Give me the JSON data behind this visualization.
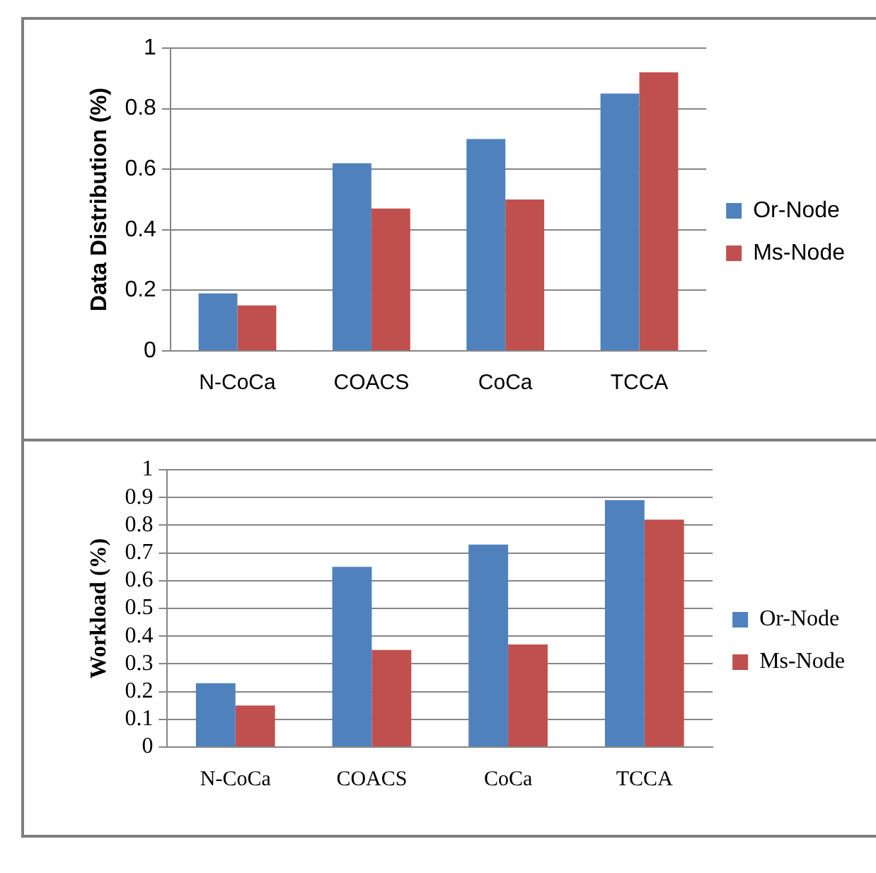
{
  "chart_data": [
    {
      "type": "bar",
      "ylabel": "Data Distribution (%)",
      "categories": [
        "N-CoCa",
        "COACS",
        "CoCa",
        "TCCA"
      ],
      "series": [
        {
          "name": "Or-Node",
          "color": "#4f81bd",
          "values": [
            0.19,
            0.62,
            0.7,
            0.85
          ]
        },
        {
          "name": "Ms-Node",
          "color": "#c0504d",
          "values": [
            0.15,
            0.47,
            0.5,
            0.92
          ]
        }
      ],
      "ylim": [
        0,
        1
      ],
      "yticks": [
        0,
        0.2,
        0.4,
        0.6,
        0.8,
        1
      ],
      "grid": "y",
      "legend": "right"
    },
    {
      "type": "bar",
      "ylabel": "Workload (%)",
      "categories": [
        "N-CoCa",
        "COACS",
        "CoCa",
        "TCCA"
      ],
      "series": [
        {
          "name": "Or-Node",
          "color": "#4f81bd",
          "values": [
            0.23,
            0.65,
            0.73,
            0.89
          ]
        },
        {
          "name": "Ms-Node",
          "color": "#c0504d",
          "values": [
            0.15,
            0.35,
            0.37,
            0.82
          ]
        }
      ],
      "ylim": [
        0,
        1
      ],
      "yticks": [
        0,
        0.1,
        0.2,
        0.3,
        0.4,
        0.5,
        0.6,
        0.7,
        0.8,
        0.9,
        1
      ],
      "grid": "y",
      "legend": "right"
    }
  ]
}
